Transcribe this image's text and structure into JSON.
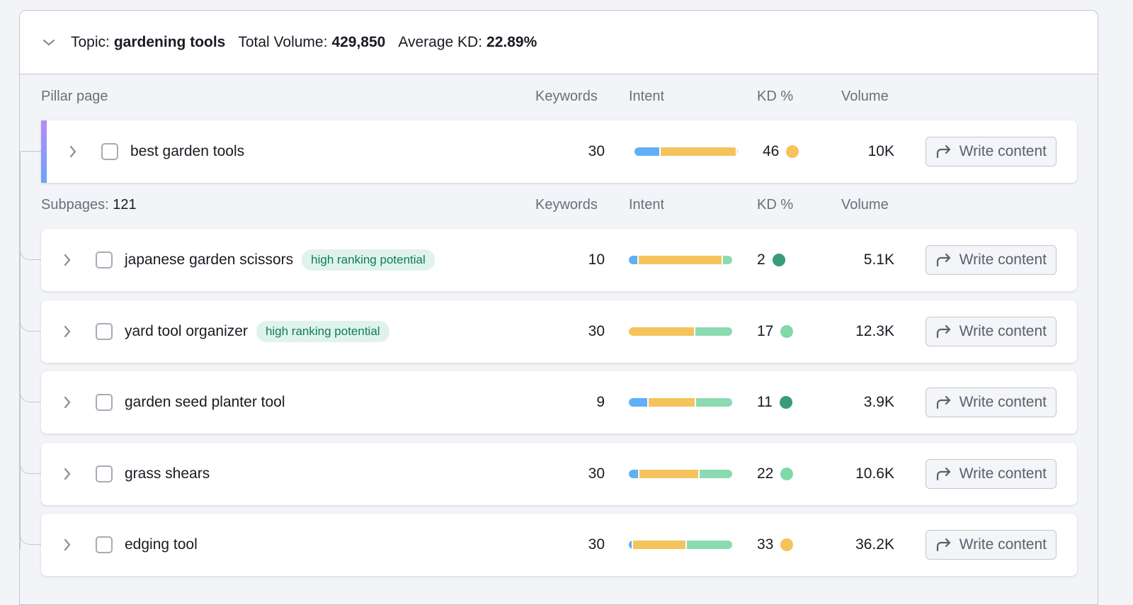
{
  "topic": {
    "label": "Topic:",
    "name": "gardening tools",
    "total_volume_label": "Total Volume:",
    "total_volume": "429,850",
    "avg_kd_label": "Average KD:",
    "avg_kd": "22.89%"
  },
  "pillar_headers": {
    "title": "Pillar page",
    "keywords": "Keywords",
    "intent": "Intent",
    "kd": "KD %",
    "volume": "Volume"
  },
  "sub_headers": {
    "title_prefix": "Subpages:",
    "count": "121",
    "keywords": "Keywords",
    "intent": "Intent",
    "kd": "KD %",
    "volume": "Volume"
  },
  "write_label": "Write content",
  "colors": {
    "informational": "#5fb0f5",
    "commercial": "#f5c35c",
    "transactional": "#8bdbb0",
    "kd_green_dark": "#3a9b77",
    "kd_green_light": "#7fd9a8",
    "kd_yellow": "#f5c35c",
    "badge_bg": "#dff3ec",
    "badge_text": "#0f7b5b"
  },
  "pillar": {
    "keyword": "best garden tools",
    "keywords": "30",
    "intent": [
      0.24,
      0.74,
      0.02
    ],
    "kd": "46",
    "kd_color": "#f5c35c",
    "volume": "10K"
  },
  "subpages": [
    {
      "keyword": "japanese garden scissors",
      "badge": "high ranking potential",
      "keywords": "10",
      "intent": [
        0.08,
        0.82,
        0.1
      ],
      "kd": "2",
      "kd_color": "#3a9b77",
      "volume": "5.1K"
    },
    {
      "keyword": "yard tool organizer",
      "badge": "high ranking potential",
      "keywords": "30",
      "intent": [
        0,
        0.63,
        0.37
      ],
      "kd": "17",
      "kd_color": "#7fd9a8",
      "volume": "12.3K"
    },
    {
      "keyword": "garden seed planter tool",
      "badge": "",
      "keywords": "9",
      "intent": [
        0.18,
        0.46,
        0.36
      ],
      "kd": "11",
      "kd_color": "#3a9b77",
      "volume": "3.9K"
    },
    {
      "keyword": "grass shears",
      "badge": "",
      "keywords": "30",
      "intent": [
        0.09,
        0.58,
        0.33
      ],
      "kd": "22",
      "kd_color": "#7fd9a8",
      "volume": "10.6K"
    },
    {
      "keyword": "edging tool",
      "badge": "",
      "keywords": "30",
      "intent": [
        0.03,
        0.52,
        0.45
      ],
      "kd": "33",
      "kd_color": "#f5c35c",
      "volume": "36.2K"
    }
  ]
}
